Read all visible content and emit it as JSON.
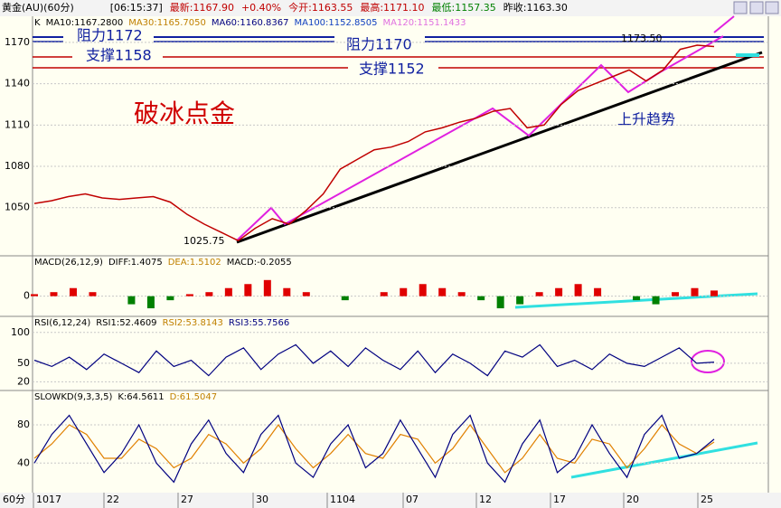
{
  "top_bar": [
    "黄金(AU)(60分)",
    "[06:15:37]",
    "最新:1167.90",
    "+0.40%",
    "今开:1163.55",
    "最高:1171.10",
    "最低:1157.35",
    "昨收:1163.30"
  ],
  "price_panel": {
    "legend": [
      "K",
      "MA10:1167.2800",
      "MA30:1165.7050",
      "MA60:1160.8367",
      "MA100:1152.8505",
      "MA120:1151.1433"
    ],
    "ylim": [
      1015,
      1189
    ],
    "yticks": [
      1170,
      1140,
      1110,
      1080,
      1050
    ],
    "values": [
      1053,
      1055,
      1058,
      1060,
      1057,
      1056,
      1057,
      1058,
      1054,
      1045,
      1038,
      1032,
      1026,
      1035,
      1042,
      1038,
      1048,
      1060,
      1078,
      1085,
      1092,
      1094,
      1098,
      1105,
      1108,
      1112,
      1115,
      1120,
      1122,
      1108,
      1110,
      1125,
      1135,
      1140,
      1145,
      1150,
      1142,
      1150,
      1165,
      1168,
      1167
    ],
    "color": "#c00000",
    "annotations": {
      "resist_1": "阻力1172",
      "resist_2": "阻力1170",
      "support_1": "支撑1158",
      "support_2": "支撑1152",
      "title": "破冰点金",
      "trend": "上升趋势",
      "low": "1025.75",
      "high": "1173.50"
    }
  },
  "macd_panel": {
    "legend": [
      "MACD(26,12,9)",
      "DIFF:1.4075",
      "DEA:1.5102",
      "MACD:-0.2055"
    ],
    "ylim": [
      -5,
      10
    ],
    "yticks": [
      0
    ],
    "values": [
      0.5,
      1,
      2,
      1,
      0,
      -2,
      -3,
      -1,
      0.5,
      1,
      2,
      3,
      4,
      2,
      1,
      0,
      -1,
      0,
      1,
      2,
      3,
      2,
      1,
      -1,
      -3,
      -2,
      1,
      2,
      3,
      2,
      0,
      -1,
      -2,
      1,
      2,
      1.4
    ]
  },
  "rsi_panel": {
    "legend": [
      "RSI(6,12,24)",
      "RSI1:52.4609",
      "RSI2:53.8143",
      "RSI3:55.7566"
    ],
    "ylim": [
      6,
      126
    ],
    "yticks": [
      100,
      50,
      20
    ],
    "values": [
      55,
      45,
      60,
      40,
      65,
      50,
      35,
      70,
      45,
      55,
      30,
      60,
      75,
      40,
      65,
      80,
      50,
      70,
      45,
      75,
      55,
      40,
      70,
      35,
      65,
      50,
      30,
      70,
      60,
      80,
      45,
      55,
      40,
      65,
      50,
      45,
      60,
      75,
      50,
      52
    ]
  },
  "kd_panel": {
    "legend": [
      "SLOWKD(9,3,3,5)",
      "K:64.5611",
      "D:61.5047"
    ],
    "ylim": [
      9,
      116
    ],
    "yticks": [
      80,
      40
    ],
    "k": [
      40,
      70,
      90,
      60,
      30,
      50,
      80,
      40,
      20,
      60,
      85,
      50,
      30,
      70,
      90,
      40,
      25,
      60,
      80,
      35,
      50,
      85,
      55,
      25,
      70,
      90,
      40,
      20,
      60,
      85,
      30,
      45,
      80,
      50,
      25,
      70,
      90,
      45,
      50,
      65
    ],
    "d": [
      45,
      60,
      80,
      70,
      45,
      45,
      65,
      55,
      35,
      45,
      70,
      60,
      40,
      55,
      80,
      55,
      35,
      50,
      70,
      50,
      45,
      70,
      65,
      40,
      55,
      80,
      55,
      30,
      45,
      70,
      45,
      40,
      65,
      60,
      35,
      55,
      80,
      60,
      50,
      62
    ]
  },
  "x_axis": {
    "unit": "60分",
    "categories": [
      "1017",
      "22",
      "27",
      "30",
      "1104",
      "07",
      "12",
      "17",
      "20",
      "25"
    ]
  }
}
